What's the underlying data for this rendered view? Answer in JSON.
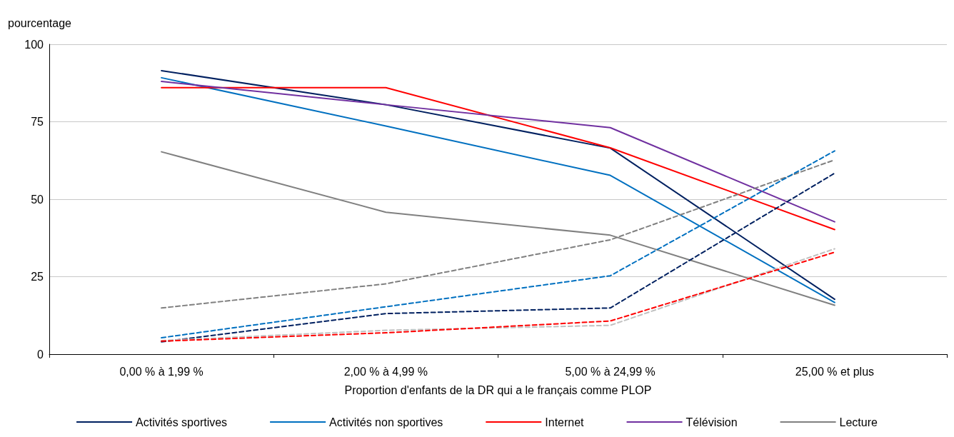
{
  "chart_data": {
    "type": "line",
    "ylabel": "pourcentage",
    "xlabel": "Proportion d'enfants de la DR qui a le français comme PLOP",
    "categories": [
      "0,00 % à 1,99 %",
      "2,00 % à 4,99 %",
      "5,00 % à 24,99 %",
      "25,00 % et plus"
    ],
    "ylim": [
      0,
      100
    ],
    "yticks": [
      0,
      25,
      50,
      75,
      100
    ],
    "grid": "y",
    "legend": "bottom",
    "marker": "none",
    "series": [
      {
        "name": "Activités sportives",
        "color": "#002060",
        "line_style": "solid",
        "values": [
          91.5,
          80.5,
          66.5,
          17.7
        ]
      },
      {
        "name": "Activités non sportives",
        "color": "#0070c0",
        "line_style": "solid",
        "values": [
          89.2,
          73.6,
          57.7,
          16.7
        ]
      },
      {
        "name": "Internet",
        "color": "#ff0000",
        "line_style": "solid",
        "values": [
          86,
          86,
          66.6,
          40.2
        ]
      },
      {
        "name": "Télévision",
        "color": "#7030a0",
        "line_style": "solid",
        "values": [
          88,
          80.5,
          73.1,
          42.7
        ]
      },
      {
        "name": "Lecture",
        "color": "#808080",
        "line_style": "solid",
        "values": [
          65.3,
          45.8,
          38.4,
          15.8
        ]
      },
      {
        "color": "#808080",
        "line_style": "dashed",
        "values": [
          14.9,
          22.7,
          36.9,
          62.7
        ]
      },
      {
        "color": "#0070c0",
        "line_style": "dashed",
        "values": [
          5.3,
          15.3,
          25.3,
          65.6
        ]
      },
      {
        "color": "#002060",
        "line_style": "dashed",
        "values": [
          4,
          13.1,
          14.9,
          58.4
        ]
      },
      {
        "color": "#c0c0c0",
        "line_style": "dashed",
        "values": [
          4.4,
          7.7,
          9.3,
          34
        ]
      },
      {
        "color": "#ff0000",
        "line_style": "dashed",
        "values": [
          4.2,
          6.9,
          10.7,
          32.9
        ]
      }
    ]
  }
}
